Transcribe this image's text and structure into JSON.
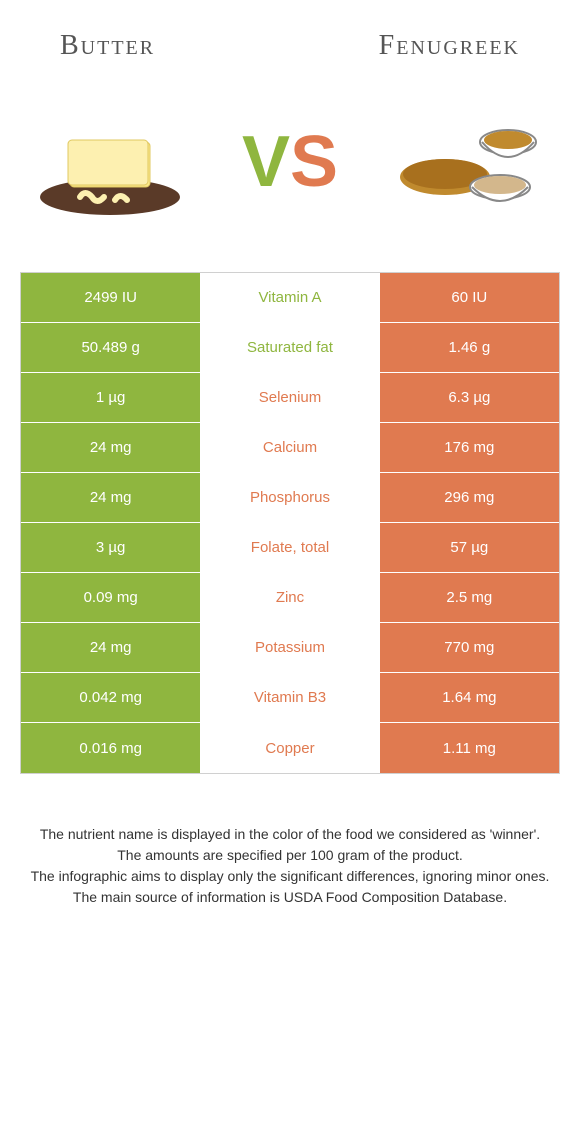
{
  "colors": {
    "green": "#8fb63f",
    "orange": "#e07a50",
    "white": "#ffffff"
  },
  "header": {
    "left": "Butter",
    "right": "Fenugreek",
    "vs_v": "V",
    "vs_s": "S"
  },
  "rows": [
    {
      "label": "Vitamin A",
      "left_val": "2499 IU",
      "right_val": "60 IU",
      "winner": "left"
    },
    {
      "label": "Saturated fat",
      "left_val": "50.489 g",
      "right_val": "1.46 g",
      "winner": "left"
    },
    {
      "label": "Selenium",
      "left_val": "1 µg",
      "right_val": "6.3 µg",
      "winner": "right"
    },
    {
      "label": "Calcium",
      "left_val": "24 mg",
      "right_val": "176 mg",
      "winner": "right"
    },
    {
      "label": "Phosphorus",
      "left_val": "24 mg",
      "right_val": "296 mg",
      "winner": "right"
    },
    {
      "label": "Folate, total",
      "left_val": "3 µg",
      "right_val": "57 µg",
      "winner": "right"
    },
    {
      "label": "Zinc",
      "left_val": "0.09 mg",
      "right_val": "2.5 mg",
      "winner": "right"
    },
    {
      "label": "Potassium",
      "left_val": "24 mg",
      "right_val": "770 mg",
      "winner": "right"
    },
    {
      "label": "Vitamin B3",
      "left_val": "0.042 mg",
      "right_val": "1.64 mg",
      "winner": "right"
    },
    {
      "label": "Copper",
      "left_val": "0.016 mg",
      "right_val": "1.11 mg",
      "winner": "right"
    }
  ],
  "footnotes": [
    "The nutrient name is displayed in the color of the food we considered as 'winner'.",
    "The amounts are specified per 100 gram of the product.",
    "The infographic aims to display only the significant differences, ignoring minor ones.",
    "The main source of information is USDA Food Composition Database."
  ]
}
